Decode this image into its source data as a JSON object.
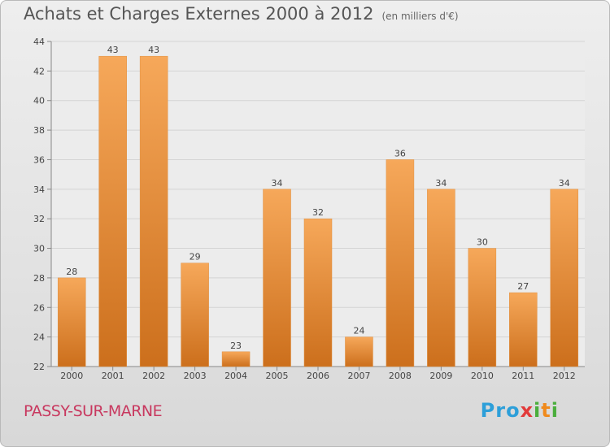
{
  "title": "Achats et Charges Externes 2000 à 2012",
  "subtitle": "(en milliers d'€)",
  "city": "PASSY-SUR-MARNE",
  "logo": {
    "text": "Proxiti"
  },
  "colors": {
    "bar_light": "#f6a85a",
    "bar_dark": "#cc6f1c",
    "city": "#c8385f"
  },
  "chart_data": {
    "type": "bar",
    "title": "Achats et Charges Externes 2000 à 2012",
    "subtitle": "(en milliers d'€)",
    "categories": [
      "2000",
      "2001",
      "2002",
      "2003",
      "2004",
      "2005",
      "2006",
      "2007",
      "2008",
      "2009",
      "2010",
      "2011",
      "2012"
    ],
    "values": [
      28,
      43,
      43,
      29,
      23,
      34,
      32,
      24,
      36,
      34,
      30,
      27,
      34
    ],
    "ylim": [
      22,
      44
    ],
    "yticks": [
      22,
      24,
      26,
      28,
      30,
      32,
      34,
      36,
      38,
      40,
      42,
      44
    ],
    "grid": true,
    "xlabel": "",
    "ylabel": ""
  }
}
